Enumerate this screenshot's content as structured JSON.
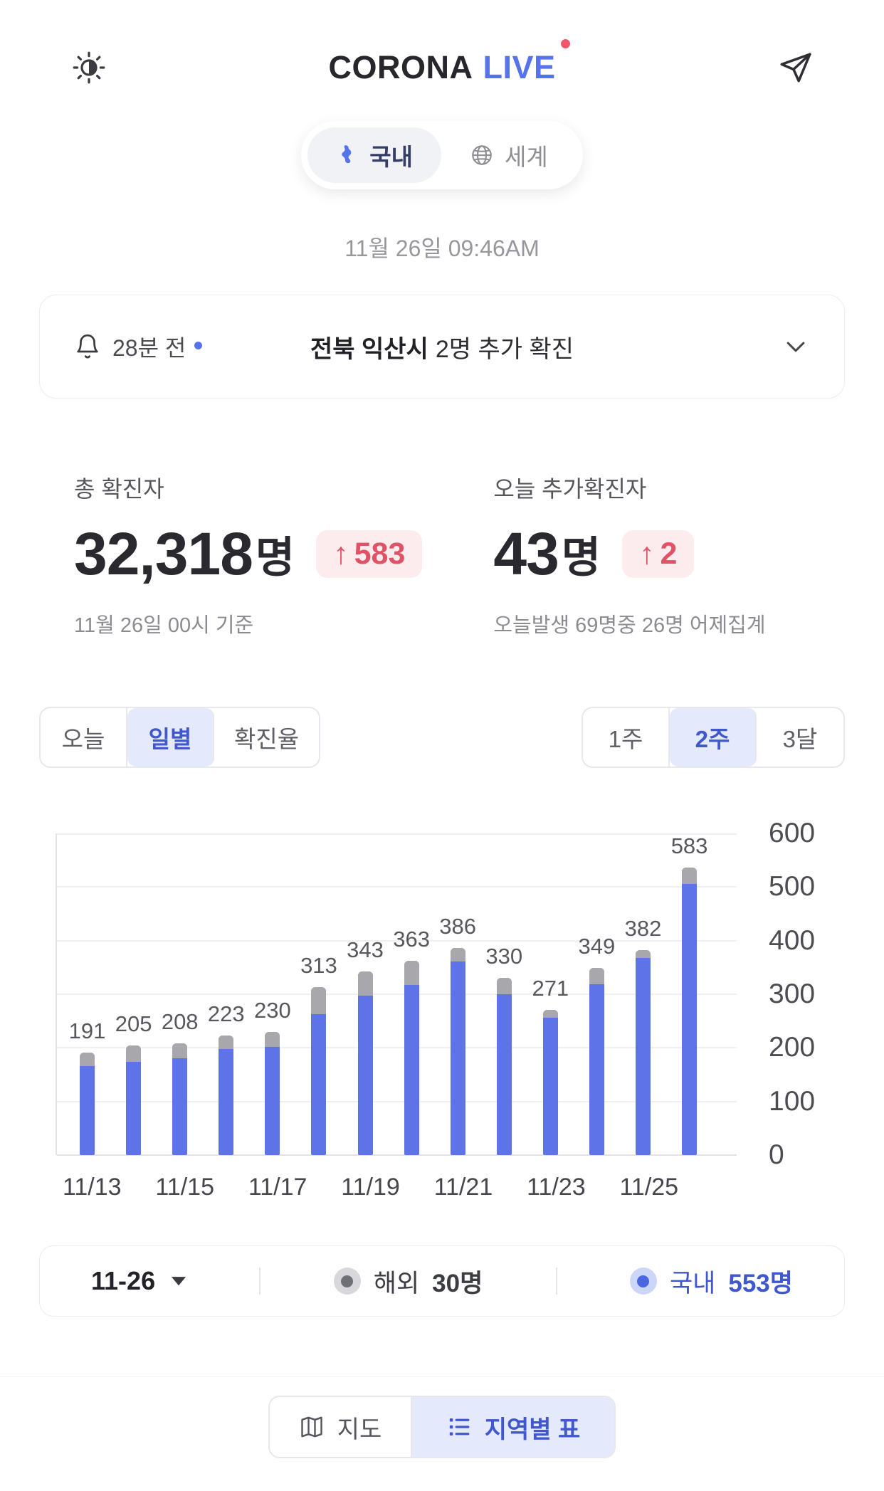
{
  "colors": {
    "accent_blue": "#5673eb",
    "bar_blue": "#5d73e7",
    "bar_gray": "#a7a7ac",
    "badge_red": "#e05266",
    "badge_bg": "#fdecee",
    "tab_active_bg": "#e4eafb",
    "tab_active_text": "#4157ce",
    "live_dot_red": "#f3566b"
  },
  "header": {
    "title_primary": "CORONA",
    "title_accent": "LIVE"
  },
  "nav_tabs": {
    "domestic": "국내",
    "world": "세계"
  },
  "timestamp": "11월 26일 09:46AM",
  "notification": {
    "time_ago": "28분 전",
    "message_bold": "전북 익산시",
    "message_rest": "2명 추가 확진"
  },
  "stats": {
    "total": {
      "label": "총 확진자",
      "value": "32,318",
      "unit": "명",
      "delta_arrow": "↑",
      "delta": "583",
      "note": "11월 26일 00시 기준"
    },
    "today": {
      "label": "오늘 추가확진자",
      "value": "43",
      "unit": "명",
      "delta_arrow": "↑",
      "delta": "2",
      "note": "오늘발생 69명중 26명 어제집계"
    }
  },
  "view_tabs": {
    "items": [
      {
        "label": "오늘",
        "active": false
      },
      {
        "label": "일별",
        "active": true
      },
      {
        "label": "확진율",
        "active": false
      }
    ]
  },
  "range_tabs": {
    "items": [
      {
        "label": "1주",
        "active": false
      },
      {
        "label": "2주",
        "active": true
      },
      {
        "label": "3달",
        "active": false
      }
    ]
  },
  "chart_data": {
    "type": "bar",
    "stacked": true,
    "categories": [
      "11/13",
      "11/14",
      "11/15",
      "11/16",
      "11/17",
      "11/18",
      "11/19",
      "11/20",
      "11/21",
      "11/22",
      "11/23",
      "11/24",
      "11/25",
      "11/26"
    ],
    "totals": [
      191,
      205,
      208,
      223,
      230,
      313,
      343,
      363,
      386,
      330,
      271,
      349,
      382,
      583
    ],
    "series": [
      {
        "name": "국내",
        "color": "#5d73e7",
        "values": [
          166,
          175,
          180,
          198,
          202,
          263,
          298,
          318,
          361,
          300,
          256,
          319,
          367,
          553
        ]
      },
      {
        "name": "해외",
        "color": "#a7a7ac",
        "values": [
          25,
          30,
          28,
          25,
          28,
          50,
          45,
          45,
          25,
          30,
          15,
          30,
          15,
          30
        ]
      }
    ],
    "x_tick_labels": [
      "11/13",
      "11/15",
      "11/17",
      "11/19",
      "11/21",
      "11/23",
      "11/25"
    ],
    "x_tick_every": 2,
    "y_ticks": [
      0,
      100,
      200,
      300,
      400,
      500,
      600
    ],
    "ylim": [
      0,
      600
    ],
    "grid": true,
    "legend_position": "bottom"
  },
  "legend": {
    "date": "11-26",
    "overseas": {
      "label": "해외",
      "value": "30명"
    },
    "domestic": {
      "label": "국내",
      "value": "553명"
    }
  },
  "bottom_tabs": {
    "map": "지도",
    "table": "지역별 표"
  }
}
